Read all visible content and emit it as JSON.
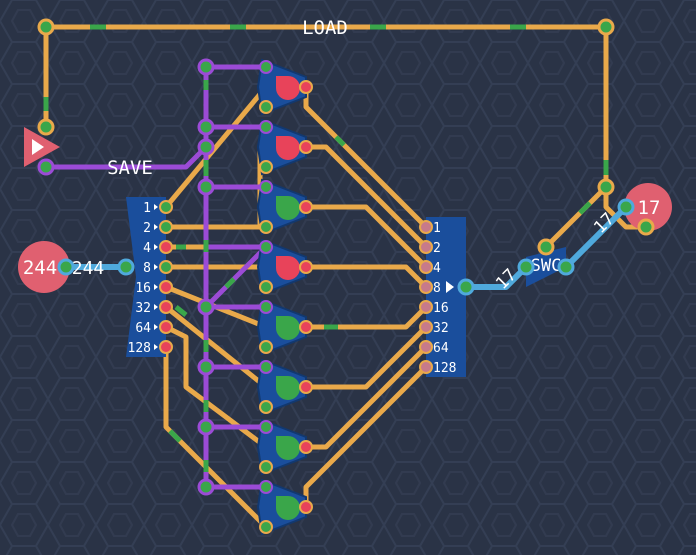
{
  "labels": {
    "load": "LOAD",
    "save": "SAVE",
    "swc": "SWC"
  },
  "input_value": "244",
  "input_wire_value": "244",
  "output_value": "17",
  "mid_wire_value": "17",
  "out_wire_value": "17",
  "splitter_bits": [
    "1",
    "2",
    "4",
    "8",
    "16",
    "32",
    "64",
    "128"
  ],
  "joiner_bits": [
    "1",
    "2",
    "4",
    "8",
    "16",
    "32",
    "64",
    "128"
  ],
  "colors": {
    "background": "#2a3346",
    "hex_pattern": "#343e54",
    "wire_orange": "#e9a94a",
    "wire_purple": "#9b4bd6",
    "wire_blue": "#4fa9dc",
    "wire_green": "#3aa64a",
    "component_blue": "#1a4e9c",
    "pin_red": "#e8435a",
    "pin_green": "#3aa64a",
    "io_pink": "#e06070"
  },
  "registers": [
    {
      "state": "on"
    },
    {
      "state": "on"
    },
    {
      "state": "off"
    },
    {
      "state": "on"
    },
    {
      "state": "off"
    },
    {
      "state": "off"
    },
    {
      "state": "off"
    },
    {
      "state": "off"
    }
  ]
}
